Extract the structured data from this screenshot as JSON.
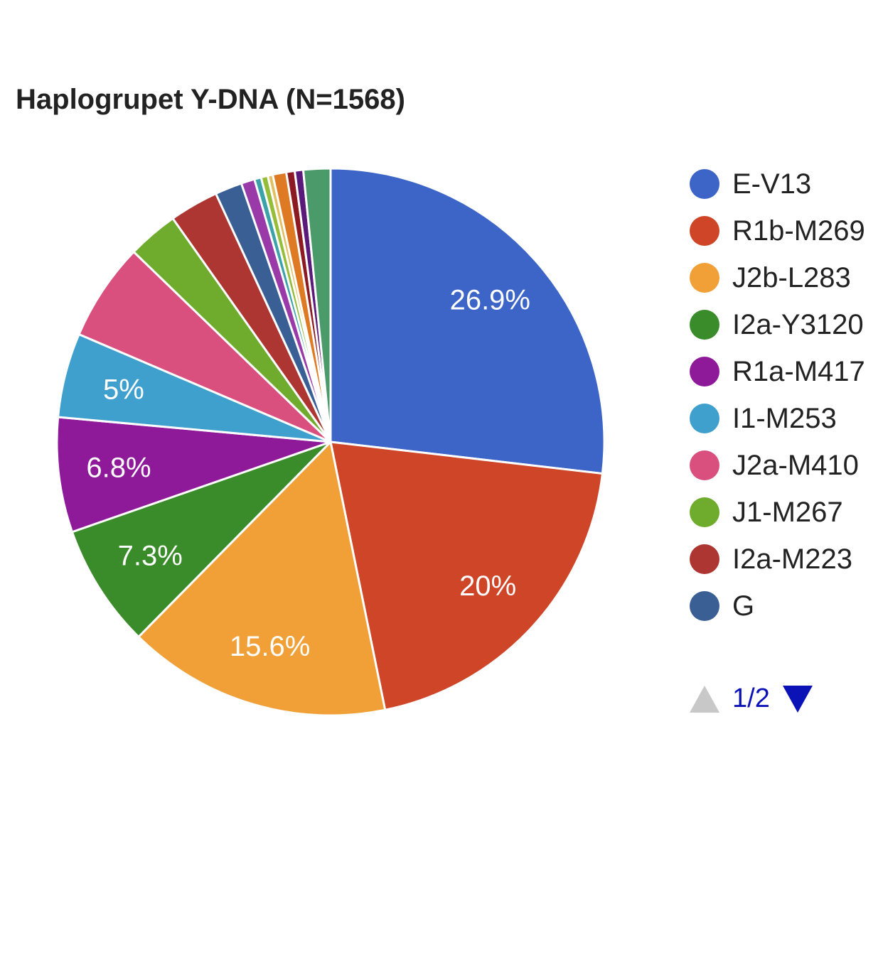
{
  "chart_data": {
    "type": "pie",
    "title": "Haplogrupet Y-DNA (N=1568)",
    "slices": [
      {
        "name": "E-V13",
        "value": 26.9,
        "color": "#3c65c7",
        "label": "26.9%"
      },
      {
        "name": "R1b-M269",
        "value": 20.0,
        "color": "#cf4527",
        "label": "20%"
      },
      {
        "name": "J2b-L283",
        "value": 15.6,
        "color": "#f0a037",
        "label": "15.6%"
      },
      {
        "name": "I2a-Y3120",
        "value": 7.3,
        "color": "#3a8c2a",
        "label": "7.3%"
      },
      {
        "name": "R1a-M417",
        "value": 6.8,
        "color": "#8e1a9a",
        "label": "6.8%"
      },
      {
        "name": "I1-M253",
        "value": 5.0,
        "color": "#3fa0ce",
        "label": "5%"
      },
      {
        "name": "J2a-M410",
        "value": 5.8,
        "color": "#d94f7e",
        "label": ""
      },
      {
        "name": "J1-M267",
        "value": 3.0,
        "color": "#6fab2c",
        "label": ""
      },
      {
        "name": "I2a-M223",
        "value": 2.9,
        "color": "#ad3532",
        "label": ""
      },
      {
        "name": "G",
        "value": 1.6,
        "color": "#3a5f95",
        "label": ""
      },
      {
        "name": "",
        "value": 0.8,
        "color": "#9a3aa8",
        "label": ""
      },
      {
        "name": "",
        "value": 0.4,
        "color": "#3aa2a8",
        "label": ""
      },
      {
        "name": "",
        "value": 0.4,
        "color": "#96bd3a",
        "label": ""
      },
      {
        "name": "",
        "value": 0.3,
        "color": "#e0c060",
        "label": ""
      },
      {
        "name": "",
        "value": 0.8,
        "color": "#df7a24",
        "label": ""
      },
      {
        "name": "",
        "value": 0.5,
        "color": "#8c1a22",
        "label": ""
      },
      {
        "name": "",
        "value": 0.5,
        "color": "#5a1a7a",
        "label": ""
      },
      {
        "name": "",
        "value": 1.6,
        "color": "#4a9a6a",
        "label": ""
      }
    ],
    "legend": {
      "position": "right",
      "entries": [
        "E-V13",
        "R1b-M269",
        "J2b-L283",
        "I2a-Y3120",
        "R1a-M417",
        "I1-M253",
        "J2a-M410",
        "J1-M267",
        "I2a-M223",
        "G"
      ],
      "page_text": "1/2",
      "colors": {
        "pager_active": "#0b13b6",
        "pager_disabled": "#c8c8c8"
      }
    }
  }
}
